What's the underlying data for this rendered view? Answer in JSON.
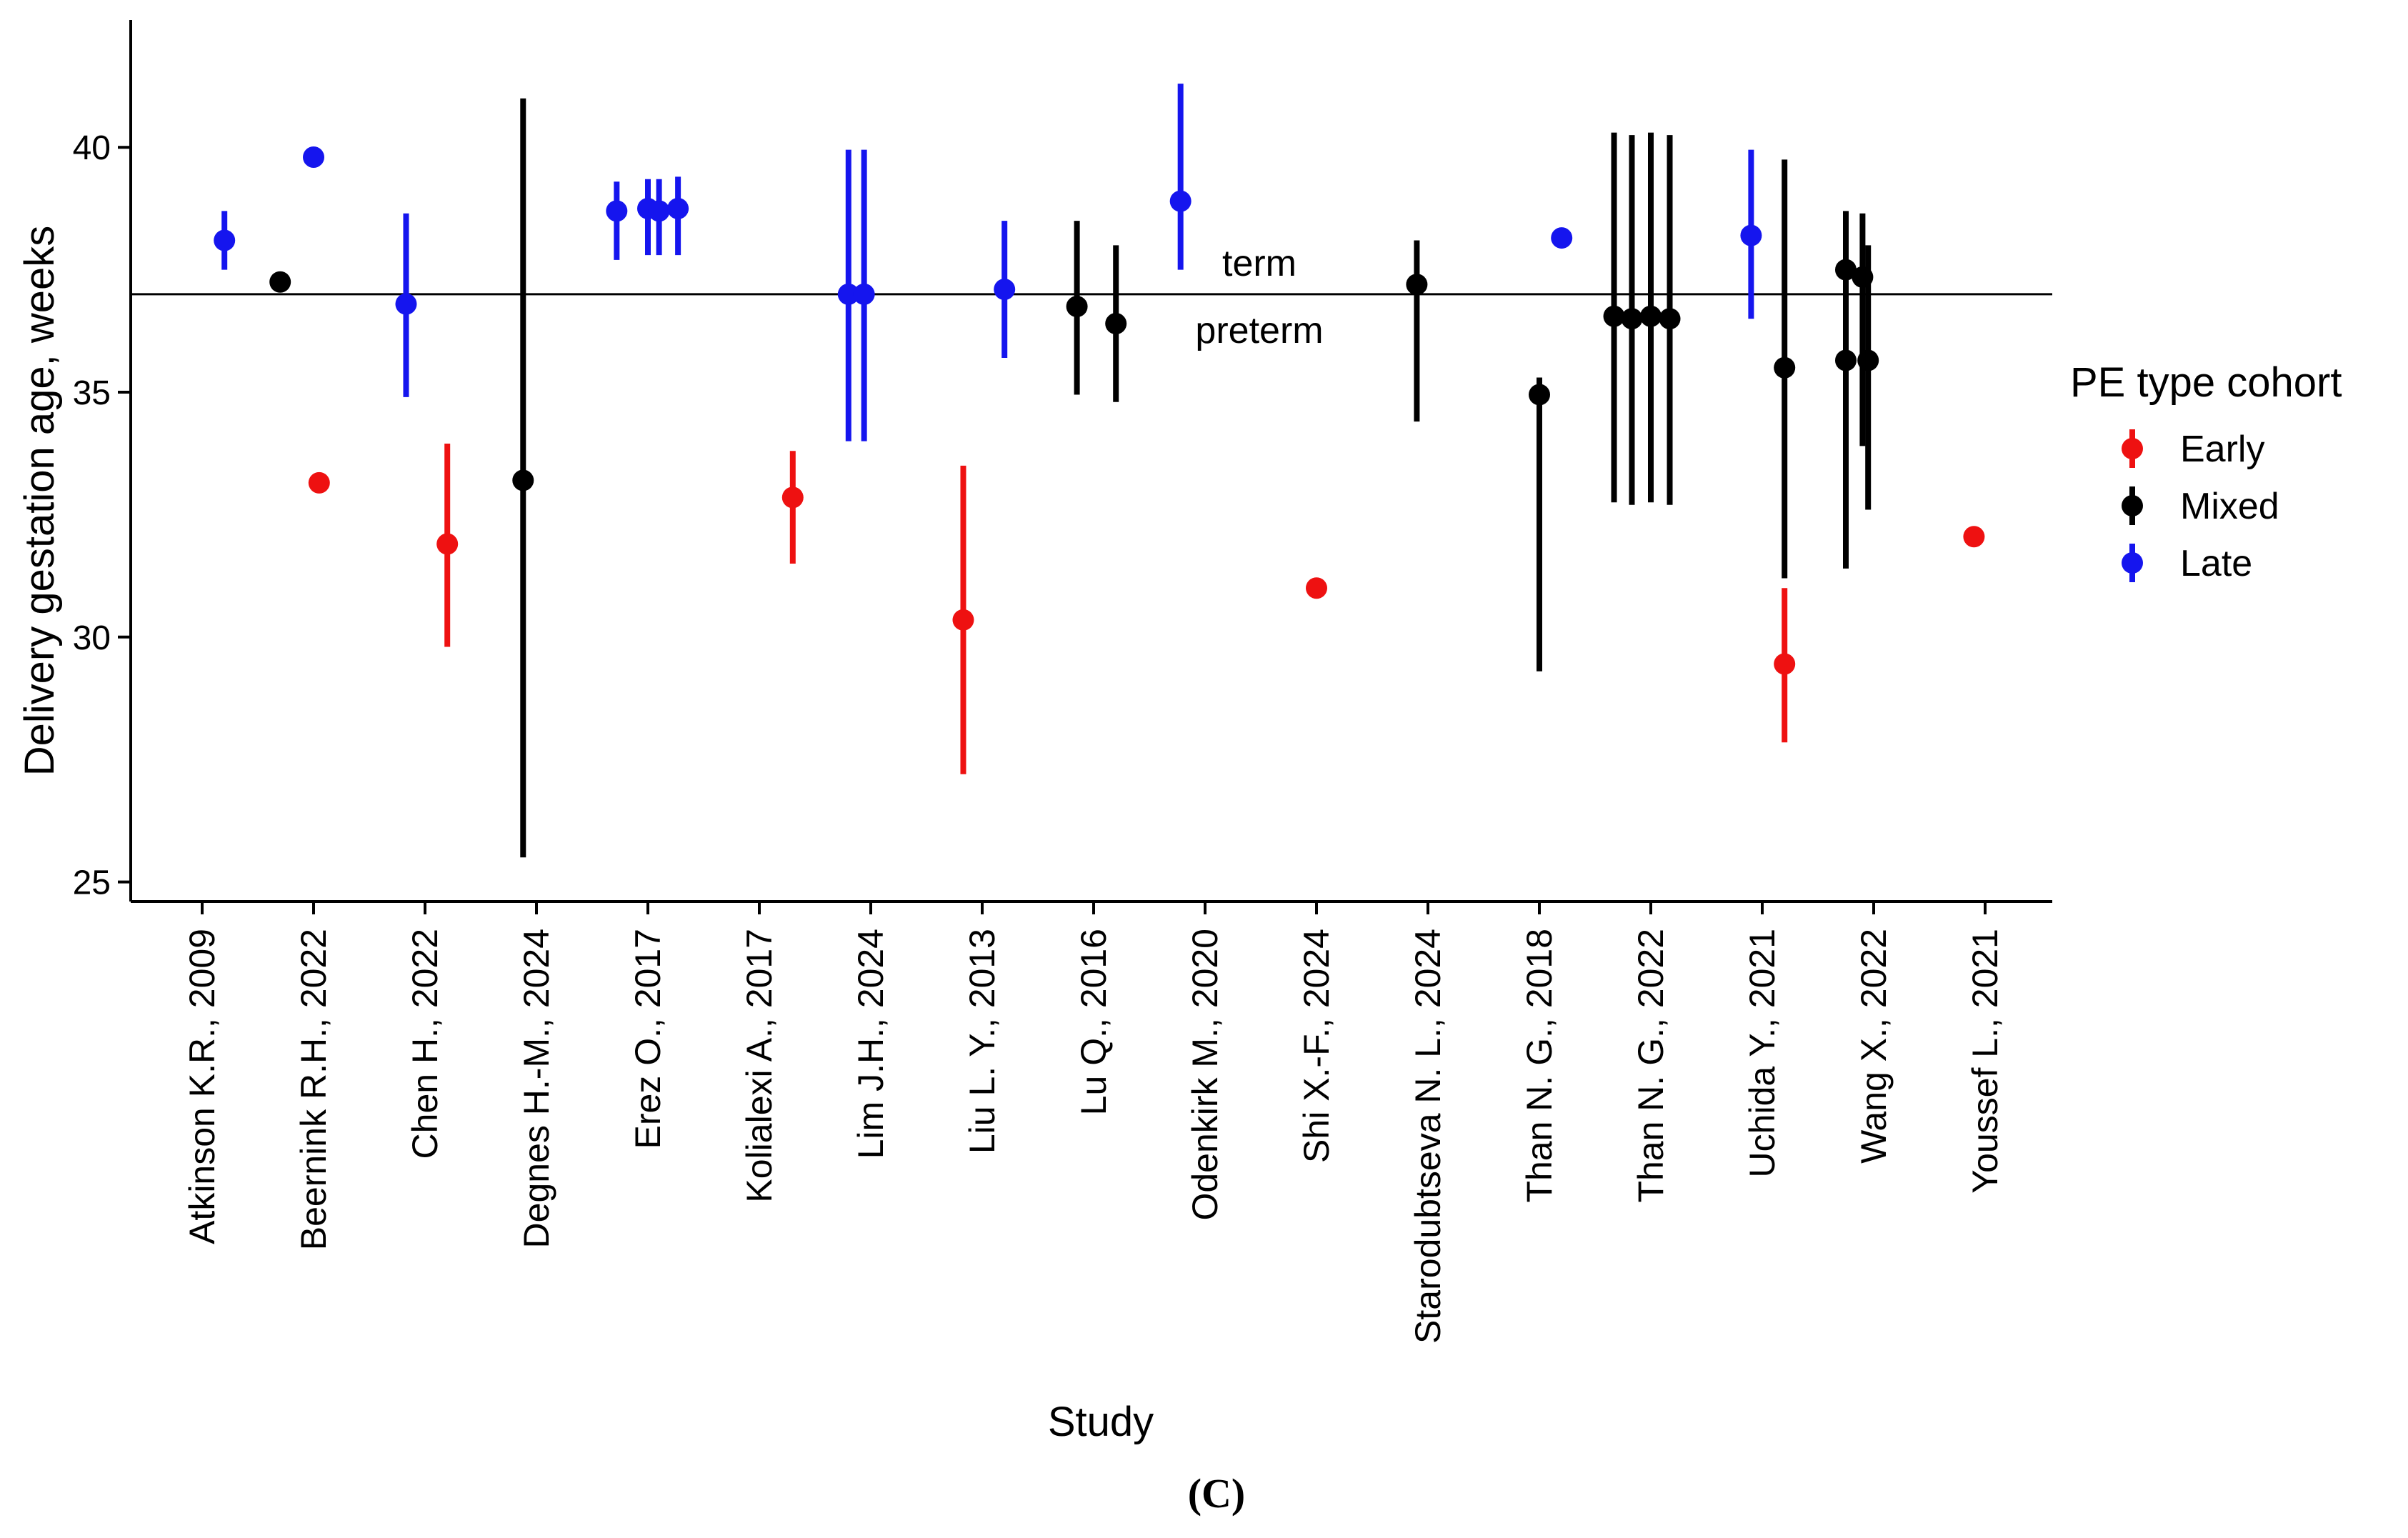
{
  "chart_data": {
    "type": "scatter",
    "subtype": "point-range",
    "xlabel": "Study",
    "ylabel": "Delivery gestation age, weeks",
    "panel_label": "(C)",
    "ylim": [
      24.6,
      42.6
    ],
    "yticks": [
      25,
      30,
      35,
      40
    ],
    "grid": false,
    "reference_line": {
      "y": 37,
      "label_above": "term",
      "label_below": "preterm"
    },
    "legend": {
      "title": "PE type cohort",
      "position": "right",
      "entries": [
        {
          "name": "Early",
          "color": "#ee1111"
        },
        {
          "name": "Mixed",
          "color": "#000000"
        },
        {
          "name": "Late",
          "color": "#1515ee"
        }
      ]
    },
    "categories": [
      "Atkinson K.R., 2009",
      "Beernink R.H., 2022",
      "Chen H., 2022",
      "Degnes H.-M., 2024",
      "Erez O., 2017",
      "Kolialexi A., 2017",
      "Lim J.H., 2024",
      "Liu L. Y., 2013",
      "Lu Q., 2016",
      "Odenkirk M., 2020",
      "Shi X.-F., 2024",
      "Starodubtseva N. L., 2024",
      "Than N. G., 2018",
      "Than N. G., 2022",
      "Uchida Y., 2021",
      "Wang X., 2022",
      "Youssef L., 2021"
    ],
    "points": [
      {
        "study": 0,
        "offset": 0.2,
        "group": "Late",
        "y": 38.1,
        "lo": 37.5,
        "hi": 38.7
      },
      {
        "study": 1,
        "offset": -0.3,
        "group": "Mixed",
        "y": 37.25,
        "lo": null,
        "hi": null
      },
      {
        "study": 1,
        "offset": 0.0,
        "group": "Late",
        "y": 39.8,
        "lo": null,
        "hi": null
      },
      {
        "study": 1,
        "offset": 0.05,
        "group": "Early",
        "y": 33.15,
        "lo": null,
        "hi": null
      },
      {
        "study": 2,
        "offset": -0.17,
        "group": "Late",
        "y": 36.8,
        "lo": 34.9,
        "hi": 38.65
      },
      {
        "study": 2,
        "offset": 0.2,
        "group": "Early",
        "y": 31.9,
        "lo": 29.8,
        "hi": 33.95
      },
      {
        "study": 3,
        "offset": -0.12,
        "group": "Mixed",
        "y": 33.2,
        "lo": 25.5,
        "hi": 41.0
      },
      {
        "study": 4,
        "offset": -0.28,
        "group": "Late",
        "y": 38.7,
        "lo": 37.7,
        "hi": 39.3
      },
      {
        "study": 4,
        "offset": 0.0,
        "group": "Late",
        "y": 38.75,
        "lo": 37.8,
        "hi": 39.35
      },
      {
        "study": 4,
        "offset": 0.1,
        "group": "Late",
        "y": 38.7,
        "lo": 37.8,
        "hi": 39.35
      },
      {
        "study": 4,
        "offset": 0.27,
        "group": "Late",
        "y": 38.75,
        "lo": 37.8,
        "hi": 39.4
      },
      {
        "study": 5,
        "offset": 0.3,
        "group": "Early",
        "y": 32.85,
        "lo": 31.5,
        "hi": 33.8
      },
      {
        "study": 6,
        "offset": -0.2,
        "group": "Late",
        "y": 37.0,
        "lo": 34.0,
        "hi": 39.95
      },
      {
        "study": 6,
        "offset": -0.06,
        "group": "Late",
        "y": 37.0,
        "lo": 34.0,
        "hi": 39.95
      },
      {
        "study": 7,
        "offset": -0.17,
        "group": "Early",
        "y": 30.35,
        "lo": 27.2,
        "hi": 33.5
      },
      {
        "study": 7,
        "offset": 0.2,
        "group": "Late",
        "y": 37.1,
        "lo": 35.7,
        "hi": 38.5
      },
      {
        "study": 8,
        "offset": -0.15,
        "group": "Mixed",
        "y": 36.75,
        "lo": 34.95,
        "hi": 38.5
      },
      {
        "study": 8,
        "offset": 0.2,
        "group": "Mixed",
        "y": 36.4,
        "lo": 34.8,
        "hi": 38.0
      },
      {
        "study": 9,
        "offset": -0.22,
        "group": "Late",
        "y": 38.9,
        "lo": 37.5,
        "hi": 41.3
      },
      {
        "study": 10,
        "offset": 0.0,
        "group": "Early",
        "y": 31.0,
        "lo": null,
        "hi": null
      },
      {
        "study": 11,
        "offset": -0.1,
        "group": "Mixed",
        "y": 37.2,
        "lo": 34.4,
        "hi": 38.1
      },
      {
        "study": 12,
        "offset": 0.0,
        "group": "Mixed",
        "y": 34.95,
        "lo": 29.3,
        "hi": 35.3
      },
      {
        "study": 12,
        "offset": 0.2,
        "group": "Late",
        "y": 38.15,
        "lo": null,
        "hi": null
      },
      {
        "study": 13,
        "offset": -0.33,
        "group": "Mixed",
        "y": 36.55,
        "lo": 32.75,
        "hi": 40.3
      },
      {
        "study": 13,
        "offset": -0.17,
        "group": "Mixed",
        "y": 36.5,
        "lo": 32.7,
        "hi": 40.25
      },
      {
        "study": 13,
        "offset": 0.0,
        "group": "Mixed",
        "y": 36.55,
        "lo": 32.75,
        "hi": 40.3
      },
      {
        "study": 13,
        "offset": 0.17,
        "group": "Mixed",
        "y": 36.5,
        "lo": 32.7,
        "hi": 40.25
      },
      {
        "study": 14,
        "offset": -0.1,
        "group": "Late",
        "y": 38.2,
        "lo": 36.5,
        "hi": 39.95
      },
      {
        "study": 14,
        "offset": 0.2,
        "group": "Early",
        "y": 29.45,
        "lo": 27.85,
        "hi": 31.0
      },
      {
        "study": 14,
        "offset": 0.2,
        "group": "Mixed",
        "y": 35.5,
        "lo": 31.2,
        "hi": 39.75
      },
      {
        "study": 15,
        "offset": -0.25,
        "group": "Mixed",
        "y": 35.65,
        "lo": 31.4,
        "hi": 36.9
      },
      {
        "study": 15,
        "offset": -0.25,
        "group": "Mixed",
        "y": 37.5,
        "lo": 34.0,
        "hi": 38.7
      },
      {
        "study": 15,
        "offset": -0.1,
        "group": "Mixed",
        "y": 37.35,
        "lo": 33.9,
        "hi": 38.65
      },
      {
        "study": 15,
        "offset": -0.05,
        "group": "Mixed",
        "y": 35.65,
        "lo": 32.6,
        "hi": 38.0
      },
      {
        "study": 16,
        "offset": -0.1,
        "group": "Early",
        "y": 32.05,
        "lo": null,
        "hi": null
      }
    ]
  }
}
